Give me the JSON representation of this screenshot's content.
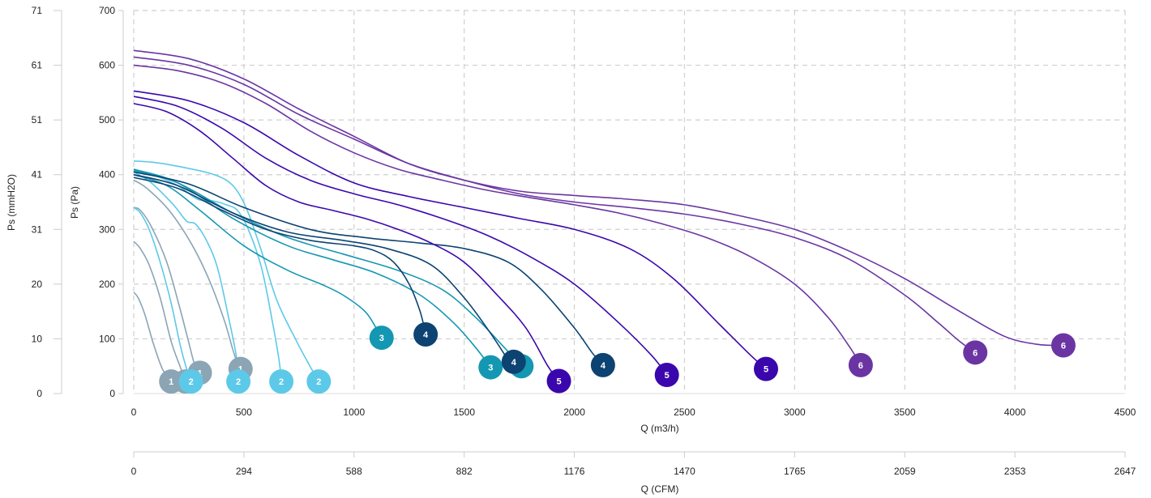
{
  "chart_data": {
    "type": "line",
    "title": "",
    "xlabel": "Q (m3/h)",
    "xlabel_secondary": "Q (CFM)",
    "ylabel": "Ps (Pa)",
    "ylabel_secondary": "Ps (mmH2O)",
    "xlim": [
      0,
      4500
    ],
    "ylim": [
      0,
      700
    ],
    "grid": true,
    "legend": "none",
    "x_ticks": [
      "0",
      "500",
      "1000",
      "1500",
      "2000",
      "2500",
      "3000",
      "3500",
      "4000",
      "4500"
    ],
    "y_ticks": [
      "0",
      "100",
      "200",
      "300",
      "400",
      "500",
      "600",
      "700"
    ],
    "x_ticks_secondary": [
      "0",
      "294",
      "588",
      "882",
      "1176",
      "1470",
      "1765",
      "2059",
      "2353",
      "2647"
    ],
    "y_ticks_secondary": [
      "0",
      "10",
      "20",
      "31",
      "41",
      "51",
      "61",
      "71"
    ],
    "series": [
      {
        "label": "1",
        "color": "#8ba5b5",
        "points": [
          [
            0,
            185
          ],
          [
            20,
            175
          ],
          [
            50,
            145
          ],
          [
            90,
            90
          ],
          [
            130,
            45
          ],
          [
            170,
            22
          ]
        ]
      },
      {
        "label": "1",
        "color": "#8ba5b5",
        "points": [
          [
            0,
            278
          ],
          [
            30,
            265
          ],
          [
            70,
            235
          ],
          [
            120,
            175
          ],
          [
            170,
            95
          ],
          [
            210,
            50
          ],
          [
            235,
            22
          ]
        ]
      },
      {
        "label": "1",
        "color": "#8ba5b5",
        "points": [
          [
            0,
            340
          ],
          [
            30,
            335
          ],
          [
            80,
            305
          ],
          [
            150,
            240
          ],
          [
            210,
            155
          ],
          [
            255,
            85
          ],
          [
            275,
            55
          ],
          [
            300,
            38
          ]
        ]
      },
      {
        "label": "1",
        "color": "#8ba5b5",
        "points": [
          [
            0,
            390
          ],
          [
            60,
            375
          ],
          [
            160,
            335
          ],
          [
            260,
            275
          ],
          [
            340,
            210
          ],
          [
            410,
            135
          ],
          [
            450,
            80
          ],
          [
            475,
            50
          ],
          [
            485,
            45
          ]
        ]
      },
      {
        "label": "2",
        "color": "#5dc9e8",
        "points": [
          [
            0,
            340
          ],
          [
            30,
            330
          ],
          [
            70,
            300
          ],
          [
            120,
            240
          ],
          [
            170,
            165
          ],
          [
            210,
            90
          ],
          [
            240,
            45
          ],
          [
            260,
            22
          ]
        ]
      },
      {
        "label": "2",
        "color": "#5dc9e8",
        "points": [
          [
            0,
            405
          ],
          [
            80,
            385
          ],
          [
            180,
            345
          ],
          [
            240,
            315
          ],
          [
            280,
            310
          ],
          [
            330,
            280
          ],
          [
            380,
            230
          ],
          [
            430,
            140
          ],
          [
            465,
            70
          ],
          [
            475,
            22
          ]
        ]
      },
      {
        "label": "2",
        "color": "#5dc9e8",
        "points": [
          [
            0,
            410
          ],
          [
            100,
            398
          ],
          [
            200,
            380
          ],
          [
            290,
            355
          ],
          [
            360,
            352
          ],
          [
            420,
            345
          ],
          [
            470,
            335
          ],
          [
            520,
            300
          ],
          [
            580,
            230
          ],
          [
            630,
            130
          ],
          [
            660,
            60
          ],
          [
            670,
            22
          ]
        ]
      },
      {
        "label": "2",
        "color": "#5dc9e8",
        "points": [
          [
            0,
            425
          ],
          [
            100,
            422
          ],
          [
            230,
            413
          ],
          [
            350,
            402
          ],
          [
            420,
            390
          ],
          [
            470,
            370
          ],
          [
            520,
            330
          ],
          [
            580,
            260
          ],
          [
            650,
            170
          ],
          [
            740,
            95
          ],
          [
            800,
            50
          ],
          [
            840,
            22
          ]
        ]
      },
      {
        "label": "3",
        "color": "#1497b2",
        "points": [
          [
            0,
            400
          ],
          [
            150,
            380
          ],
          [
            300,
            335
          ],
          [
            500,
            270
          ],
          [
            700,
            225
          ],
          [
            850,
            200
          ],
          [
            950,
            180
          ],
          [
            1050,
            150
          ],
          [
            1100,
            120
          ],
          [
            1125,
            102
          ]
        ]
      },
      {
        "label": "3",
        "color": "#1497b2",
        "points": [
          [
            0,
            410
          ],
          [
            200,
            385
          ],
          [
            450,
            320
          ],
          [
            700,
            270
          ],
          [
            900,
            245
          ],
          [
            1100,
            220
          ],
          [
            1300,
            180
          ],
          [
            1450,
            130
          ],
          [
            1550,
            85
          ],
          [
            1620,
            48
          ]
        ]
      },
      {
        "label": "3",
        "color": "#1497b2",
        "points": [
          [
            0,
            408
          ],
          [
            200,
            385
          ],
          [
            450,
            330
          ],
          [
            700,
            285
          ],
          [
            950,
            255
          ],
          [
            1200,
            225
          ],
          [
            1400,
            190
          ],
          [
            1550,
            140
          ],
          [
            1680,
            85
          ],
          [
            1760,
            50
          ]
        ]
      },
      {
        "label": "4",
        "color": "#0c4372",
        "points": [
          [
            0,
            395
          ],
          [
            200,
            375
          ],
          [
            400,
            335
          ],
          [
            600,
            300
          ],
          [
            800,
            280
          ],
          [
            1000,
            270
          ],
          [
            1100,
            260
          ],
          [
            1180,
            240
          ],
          [
            1250,
            200
          ],
          [
            1300,
            150
          ],
          [
            1325,
            108
          ]
        ]
      },
      {
        "label": "4",
        "color": "#0c4372",
        "points": [
          [
            0,
            400
          ],
          [
            200,
            380
          ],
          [
            450,
            330
          ],
          [
            700,
            295
          ],
          [
            950,
            280
          ],
          [
            1150,
            265
          ],
          [
            1350,
            235
          ],
          [
            1500,
            175
          ],
          [
            1620,
            110
          ],
          [
            1700,
            62
          ],
          [
            1725,
            58
          ]
        ]
      },
      {
        "label": "4",
        "color": "#0c4372",
        "points": [
          [
            0,
            405
          ],
          [
            250,
            383
          ],
          [
            500,
            340
          ],
          [
            800,
            300
          ],
          [
            1050,
            285
          ],
          [
            1300,
            275
          ],
          [
            1500,
            265
          ],
          [
            1700,
            240
          ],
          [
            1850,
            190
          ],
          [
            2000,
            120
          ],
          [
            2080,
            75
          ],
          [
            2130,
            52
          ]
        ]
      },
      {
        "label": "5",
        "color": "#3a07ad",
        "points": [
          [
            0,
            530
          ],
          [
            150,
            515
          ],
          [
            300,
            480
          ],
          [
            450,
            430
          ],
          [
            600,
            380
          ],
          [
            750,
            350
          ],
          [
            900,
            335
          ],
          [
            1050,
            320
          ],
          [
            1200,
            300
          ],
          [
            1350,
            275
          ],
          [
            1500,
            240
          ],
          [
            1650,
            180
          ],
          [
            1780,
            120
          ],
          [
            1880,
            50
          ],
          [
            1930,
            23
          ]
        ]
      },
      {
        "label": "5",
        "color": "#3a07ad",
        "points": [
          [
            0,
            543
          ],
          [
            200,
            525
          ],
          [
            400,
            485
          ],
          [
            600,
            430
          ],
          [
            800,
            390
          ],
          [
            1000,
            365
          ],
          [
            1200,
            345
          ],
          [
            1400,
            320
          ],
          [
            1600,
            290
          ],
          [
            1800,
            250
          ],
          [
            2000,
            200
          ],
          [
            2200,
            130
          ],
          [
            2350,
            70
          ],
          [
            2420,
            34
          ]
        ]
      },
      {
        "label": "5",
        "color": "#3a07ad",
        "points": [
          [
            0,
            553
          ],
          [
            250,
            535
          ],
          [
            500,
            495
          ],
          [
            750,
            435
          ],
          [
            1000,
            385
          ],
          [
            1250,
            360
          ],
          [
            1500,
            340
          ],
          [
            1750,
            320
          ],
          [
            2000,
            300
          ],
          [
            2250,
            265
          ],
          [
            2450,
            210
          ],
          [
            2650,
            130
          ],
          [
            2800,
            70
          ],
          [
            2870,
            45
          ]
        ]
      },
      {
        "label": "6",
        "color": "#6a35a3",
        "points": [
          [
            0,
            600
          ],
          [
            200,
            590
          ],
          [
            400,
            568
          ],
          [
            600,
            530
          ],
          [
            800,
            480
          ],
          [
            1000,
            440
          ],
          [
            1200,
            410
          ],
          [
            1400,
            390
          ],
          [
            1600,
            372
          ],
          [
            1800,
            358
          ],
          [
            2000,
            345
          ],
          [
            2200,
            330
          ],
          [
            2400,
            310
          ],
          [
            2600,
            285
          ],
          [
            2800,
            250
          ],
          [
            3000,
            200
          ],
          [
            3150,
            140
          ],
          [
            3250,
            85
          ],
          [
            3300,
            52
          ]
        ]
      },
      {
        "label": "6",
        "color": "#6a35a3",
        "points": [
          [
            0,
            615
          ],
          [
            250,
            600
          ],
          [
            500,
            565
          ],
          [
            750,
            510
          ],
          [
            1000,
            465
          ],
          [
            1250,
            420
          ],
          [
            1500,
            390
          ],
          [
            1750,
            365
          ],
          [
            2000,
            350
          ],
          [
            2250,
            340
          ],
          [
            2500,
            328
          ],
          [
            2750,
            310
          ],
          [
            3000,
            285
          ],
          [
            3250,
            245
          ],
          [
            3500,
            180
          ],
          [
            3650,
            130
          ],
          [
            3750,
            95
          ],
          [
            3820,
            75
          ]
        ]
      },
      {
        "label": "6",
        "color": "#6a35a3",
        "points": [
          [
            0,
            627
          ],
          [
            250,
            612
          ],
          [
            500,
            575
          ],
          [
            750,
            520
          ],
          [
            1000,
            470
          ],
          [
            1250,
            420
          ],
          [
            1500,
            390
          ],
          [
            1750,
            370
          ],
          [
            2000,
            362
          ],
          [
            2250,
            355
          ],
          [
            2500,
            345
          ],
          [
            2750,
            325
          ],
          [
            3000,
            300
          ],
          [
            3250,
            260
          ],
          [
            3500,
            210
          ],
          [
            3750,
            150
          ],
          [
            3950,
            105
          ],
          [
            4100,
            90
          ],
          [
            4220,
            88
          ]
        ]
      }
    ]
  }
}
